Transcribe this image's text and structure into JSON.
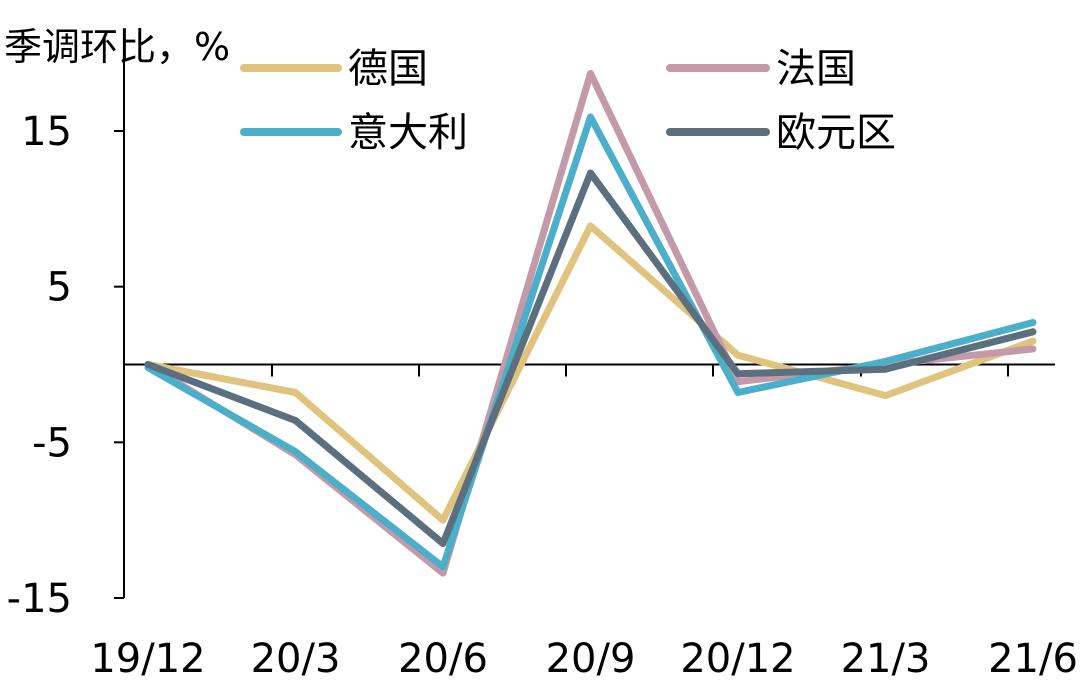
{
  "chart_data": {
    "type": "line",
    "unit_label": "季调环比，%",
    "x": [
      "19/12",
      "20/3",
      "20/6",
      "20/9",
      "20/12",
      "21/3",
      "21/6"
    ],
    "ylim": [
      -15,
      20
    ],
    "yticks": [
      15,
      5,
      -5,
      -15
    ],
    "ytick_labels": [
      "15",
      "5",
      "-5",
      "-15"
    ],
    "grid": false,
    "legend_position": "top",
    "series": [
      {
        "name": "德国",
        "color": "#E0C47E",
        "values": [
          0.0,
          -1.8,
          -10.0,
          8.9,
          0.6,
          -2.0,
          1.5
        ]
      },
      {
        "name": "法国",
        "color": "#C49AAA",
        "values": [
          0.0,
          -5.8,
          -13.4,
          18.7,
          -1.1,
          0.0,
          1.0
        ]
      },
      {
        "name": "意大利",
        "color": "#4BAFC9",
        "values": [
          -0.2,
          -5.6,
          -13.0,
          15.9,
          -1.8,
          0.2,
          2.7
        ]
      },
      {
        "name": "欧元区",
        "color": "#5C6F7E",
        "values": [
          0.0,
          -3.6,
          -11.5,
          12.3,
          -0.6,
          -0.3,
          2.1
        ]
      }
    ]
  }
}
